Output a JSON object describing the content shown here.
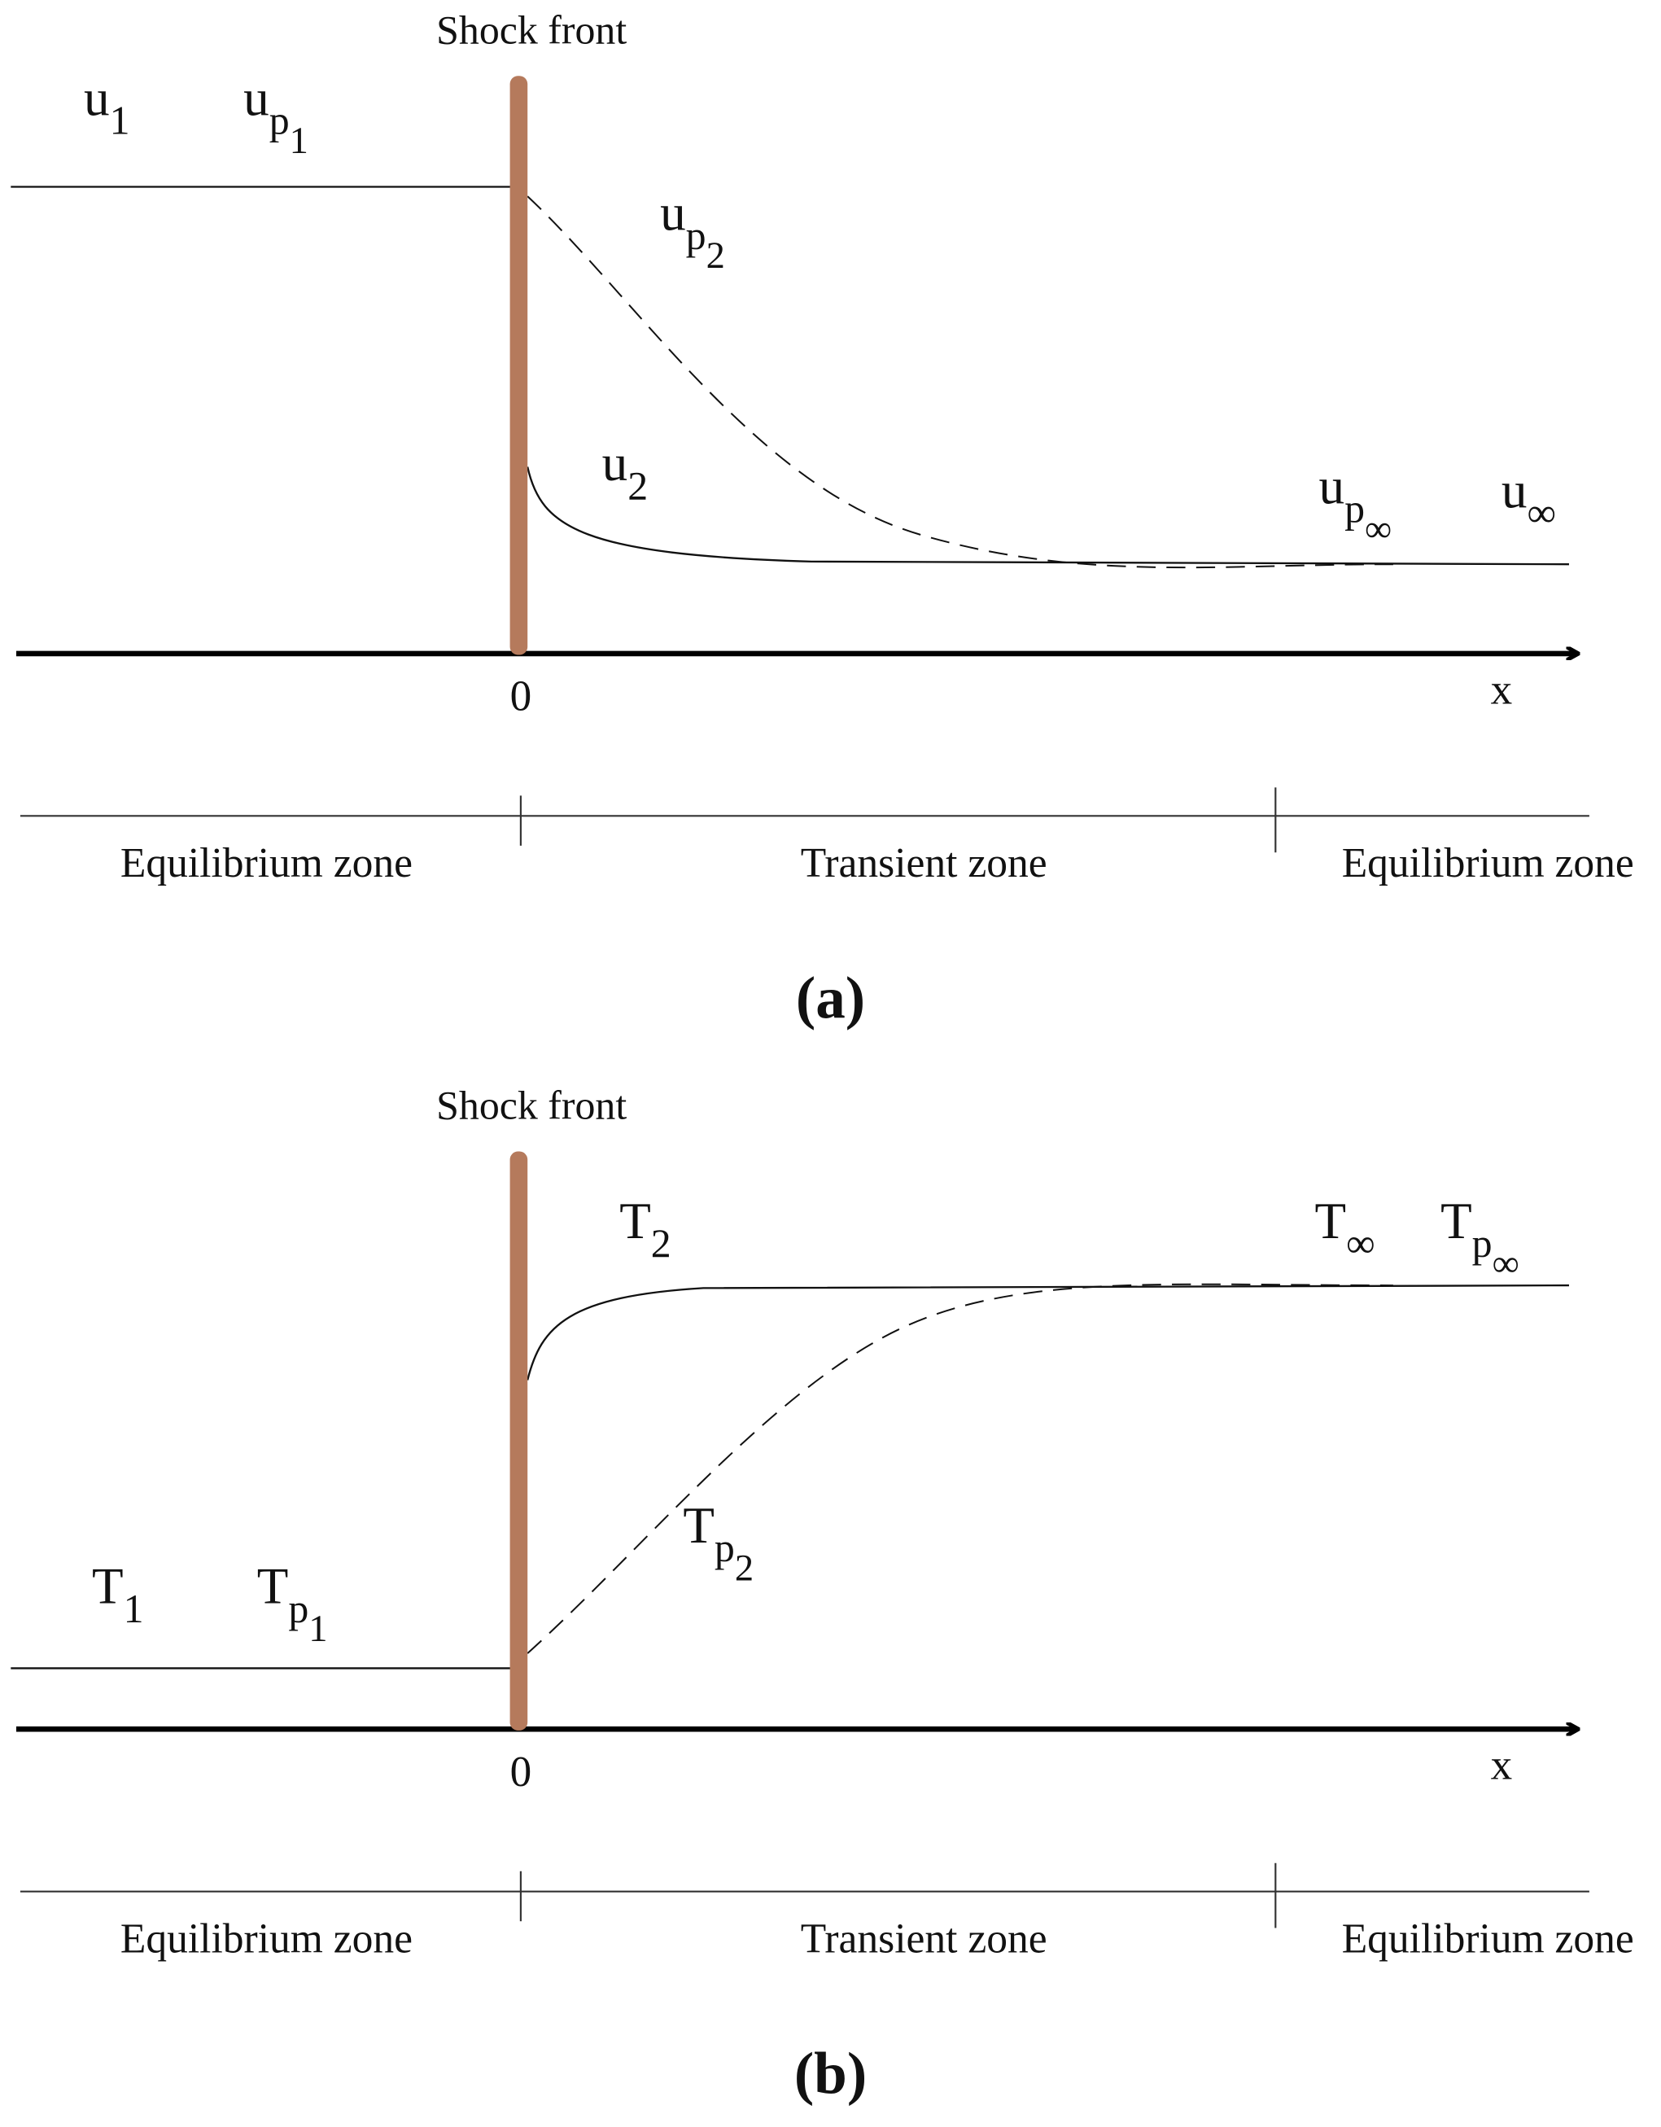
{
  "panels": [
    {
      "title": "Shock front",
      "labels": [
        {
          "text": "u",
          "sub": "1"
        },
        {
          "text": "u",
          "sub": "p",
          "subsub": "1"
        },
        {
          "text": "u",
          "sub": "p",
          "subsub": "2"
        },
        {
          "text": "u",
          "sub": "2"
        },
        {
          "text": "u",
          "sub": "p",
          "subsub": "∞"
        },
        {
          "text": "u",
          "sub": "∞"
        }
      ],
      "origin": "0",
      "axis_label": "x",
      "zones": [
        "Equilibrium zone",
        "Transient zone",
        "Equilibrium zone"
      ],
      "caption": "(a)"
    },
    {
      "title": "Shock front",
      "labels": [
        {
          "text": "T",
          "sub": "1"
        },
        {
          "text": "T",
          "sub": "p",
          "subsub": "1"
        },
        {
          "text": "T",
          "sub": "2"
        },
        {
          "text": "T",
          "sub": "p",
          "subsub": "2"
        },
        {
          "text": "T",
          "sub": "∞"
        },
        {
          "text": "T",
          "sub": "p",
          "subsub": "∞"
        }
      ],
      "origin": "0",
      "axis_label": "x",
      "zones": [
        "Equilibrium zone",
        "Transient zone",
        "Equilibrium zone"
      ],
      "caption": "(b)"
    }
  ]
}
